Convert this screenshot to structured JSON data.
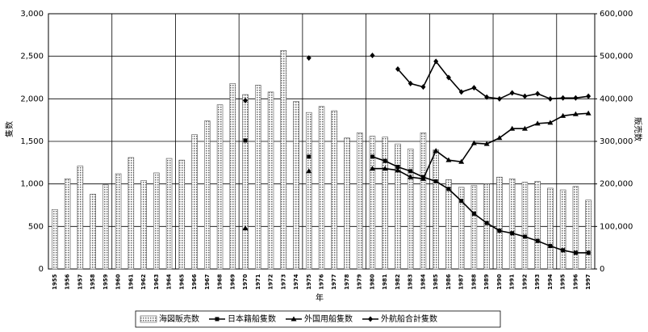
{
  "chart_data": {
    "type": "bar-line",
    "x_label": "年",
    "y_label": "隻数",
    "y2_label": "販売数",
    "categories": [
      "1955",
      "1956",
      "1957",
      "1958",
      "1959",
      "1960",
      "1961",
      "1962",
      "1963",
      "1964",
      "1965",
      "1966",
      "1967",
      "1968",
      "1969",
      "1970",
      "1971",
      "1972",
      "1973",
      "1974",
      "1975",
      "1976",
      "1977",
      "1978",
      "1979",
      "1980",
      "1981",
      "1982",
      "1983",
      "1984",
      "1985",
      "1986",
      "1987",
      "1988",
      "1989",
      "1990",
      "1991",
      "1992",
      "1993",
      "1994",
      "1995",
      "1996",
      "1997"
    ],
    "series": [
      {
        "name": "海図販売数",
        "kind": "bar",
        "axis": "y2",
        "color": "#bbbbbb",
        "values": [
          140000,
          212000,
          242000,
          176000,
          198000,
          224000,
          262000,
          208000,
          226000,
          260000,
          256000,
          316000,
          348000,
          386000,
          436000,
          410000,
          432000,
          416000,
          514000,
          394000,
          368000,
          382000,
          372000,
          308000,
          320000,
          312000,
          310000,
          294000,
          282000,
          320000,
          280000,
          210000,
          192000,
          196000,
          200000,
          216000,
          212000,
          204000,
          206000,
          190000,
          186000,
          194000,
          162000
        ]
      },
      {
        "name": "日本籍船隻数",
        "kind": "line",
        "marker": "square",
        "color": "#000000",
        "values": [
          null,
          null,
          null,
          null,
          null,
          null,
          null,
          null,
          null,
          null,
          null,
          null,
          null,
          null,
          null,
          1510,
          null,
          null,
          null,
          null,
          1320,
          null,
          null,
          null,
          null,
          1320,
          1270,
          1200,
          1150,
          1080,
          1030,
          940,
          800,
          650,
          540,
          450,
          420,
          380,
          330,
          270,
          220,
          190,
          190
        ]
      },
      {
        "name": "外国用船隻数",
        "kind": "line",
        "marker": "triangle",
        "color": "#000000",
        "values": [
          null,
          null,
          null,
          null,
          null,
          null,
          null,
          null,
          null,
          null,
          null,
          null,
          null,
          null,
          null,
          480,
          null,
          null,
          null,
          null,
          1150,
          null,
          null,
          null,
          null,
          1180,
          1180,
          1160,
          1080,
          1060,
          1390,
          1280,
          1260,
          1480,
          1470,
          1540,
          1650,
          1650,
          1710,
          1720,
          1800,
          1820,
          1830
        ]
      },
      {
        "name": "外航船合計隻数",
        "kind": "line",
        "marker": "diamond",
        "color": "#000000",
        "values": [
          null,
          null,
          null,
          null,
          null,
          null,
          null,
          null,
          null,
          null,
          null,
          null,
          null,
          null,
          null,
          1980,
          null,
          null,
          null,
          null,
          2480,
          null,
          null,
          null,
          null,
          2510,
          null,
          2350,
          2180,
          2140,
          2440,
          2250,
          2080,
          2130,
          2020,
          2000,
          2070,
          2030,
          2060,
          2000,
          2010,
          2010,
          2030
        ]
      }
    ],
    "ylim": [
      0,
      3000
    ],
    "yticks": [
      0,
      500,
      {
        "value": 1000,
        "label": "1,000"
      },
      {
        "value": 1500,
        "label": "1,500"
      },
      {
        "value": 2000,
        "label": "2,000"
      },
      {
        "value": 2500,
        "label": "2,500"
      },
      {
        "value": 3000,
        "label": "3,000"
      }
    ],
    "y2lim": [
      0,
      600000
    ],
    "y2ticks": [
      0,
      {
        "value": 100000,
        "label": "100,000"
      },
      {
        "value": 200000,
        "label": "200,000"
      },
      {
        "value": 300000,
        "label": "300,000"
      },
      {
        "value": 400000,
        "label": "400,000"
      },
      {
        "value": 500000,
        "label": "500,000"
      },
      {
        "value": 600000,
        "label": "600,000"
      }
    ],
    "grid": true
  }
}
